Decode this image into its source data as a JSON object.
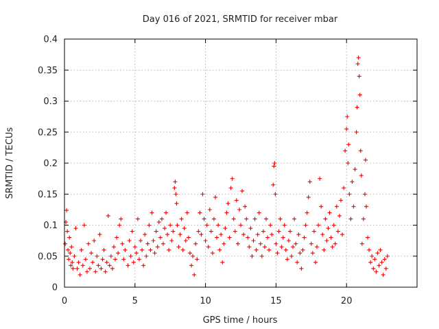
{
  "chart_data": {
    "type": "scatter",
    "title": "Day 016 of 2021, SRMTID for receiver mbar",
    "xlabel": "GPS time / hours",
    "ylabel": "SRMTID / TECUs",
    "xlim": [
      0,
      25
    ],
    "ylim": [
      0,
      0.4
    ],
    "x_ticks": [
      0,
      5,
      10,
      15,
      20
    ],
    "x_tick_labels": [
      "0",
      "5",
      "10",
      "15",
      "20"
    ],
    "y_ticks": [
      0,
      0.05,
      0.1,
      0.15,
      0.2,
      0.25,
      0.3,
      0.35,
      0.4
    ],
    "y_tick_labels": [
      "0",
      "0.05",
      "0.1",
      "0.15",
      "0.2",
      "0.25",
      "0.3",
      "0.35",
      "0.4"
    ],
    "grid": true,
    "marker": "+",
    "color": "#ee0000",
    "series": [
      {
        "name": "SRMTID",
        "points": [
          [
            0.05,
            0.07
          ],
          [
            0.1,
            0.105
          ],
          [
            0.15,
            0.124
          ],
          [
            0.2,
            0.09
          ],
          [
            0.25,
            0.06
          ],
          [
            0.3,
            0.045
          ],
          [
            0.35,
            0.08
          ],
          [
            0.4,
            0.055
          ],
          [
            0.45,
            0.035
          ],
          [
            0.5,
            0.065
          ],
          [
            0.55,
            0.04
          ],
          [
            0.6,
            0.03
          ],
          [
            0.7,
            0.05
          ],
          [
            0.8,
            0.095
          ],
          [
            0.9,
            0.03
          ],
          [
            1.0,
            0.04
          ],
          [
            1.1,
            0.02
          ],
          [
            1.2,
            0.06
          ],
          [
            1.3,
            0.035
          ],
          [
            1.4,
            0.1
          ],
          [
            1.5,
            0.045
          ],
          [
            1.6,
            0.025
          ],
          [
            1.7,
            0.07
          ],
          [
            1.8,
            0.03
          ],
          [
            1.9,
            0.055
          ],
          [
            2.0,
            0.04
          ],
          [
            2.1,
            0.075
          ],
          [
            2.2,
            0.025
          ],
          [
            2.3,
            0.05
          ],
          [
            2.4,
            0.035
          ],
          [
            2.5,
            0.085
          ],
          [
            2.6,
            0.03
          ],
          [
            2.7,
            0.045
          ],
          [
            2.8,
            0.06
          ],
          [
            2.9,
            0.025
          ],
          [
            3.0,
            0.04
          ],
          [
            3.1,
            0.115
          ],
          [
            3.2,
            0.035
          ],
          [
            3.3,
            0.05
          ],
          [
            3.4,
            0.03
          ],
          [
            3.5,
            0.065
          ],
          [
            3.6,
            0.045
          ],
          [
            3.7,
            0.08
          ],
          [
            3.8,
            0.055
          ],
          [
            3.9,
            0.1
          ],
          [
            4.0,
            0.11
          ],
          [
            4.1,
            0.07
          ],
          [
            4.2,
            0.045
          ],
          [
            4.3,
            0.06
          ],
          [
            4.5,
            0.035
          ],
          [
            4.6,
            0.075
          ],
          [
            4.7,
            0.05
          ],
          [
            4.8,
            0.09
          ],
          [
            4.9,
            0.04
          ],
          [
            5.0,
            0.065
          ],
          [
            5.1,
            0.055
          ],
          [
            5.2,
            0.11
          ],
          [
            5.3,
            0.045
          ],
          [
            5.4,
            0.075
          ],
          [
            5.5,
            0.06
          ],
          [
            5.6,
            0.035
          ],
          [
            5.7,
            0.085
          ],
          [
            5.8,
            0.05
          ],
          [
            5.9,
            0.07
          ],
          [
            6.0,
            0.1
          ],
          [
            6.1,
            0.06
          ],
          [
            6.2,
            0.12
          ],
          [
            6.3,
            0.075
          ],
          [
            6.4,
            0.055
          ],
          [
            6.5,
            0.09
          ],
          [
            6.6,
            0.065
          ],
          [
            6.7,
            0.105
          ],
          [
            6.8,
            0.08
          ],
          [
            6.9,
            0.11
          ],
          [
            7.0,
            0.07
          ],
          [
            7.1,
            0.095
          ],
          [
            7.2,
            0.12
          ],
          [
            7.3,
            0.085
          ],
          [
            7.4,
            0.06
          ],
          [
            7.5,
            0.1
          ],
          [
            7.6,
            0.075
          ],
          [
            7.7,
            0.09
          ],
          [
            7.8,
            0.16
          ],
          [
            7.85,
            0.17
          ],
          [
            7.9,
            0.15
          ],
          [
            7.95,
            0.135
          ],
          [
            8.0,
            0.1
          ],
          [
            8.1,
            0.065
          ],
          [
            8.2,
            0.085
          ],
          [
            8.3,
            0.11
          ],
          [
            8.4,
            0.06
          ],
          [
            8.5,
            0.095
          ],
          [
            8.6,
            0.075
          ],
          [
            8.7,
            0.12
          ],
          [
            8.8,
            0.08
          ],
          [
            8.9,
            0.055
          ],
          [
            9.0,
            0.035
          ],
          [
            9.1,
            0.05
          ],
          [
            9.2,
            0.02
          ],
          [
            9.3,
            0.07
          ],
          [
            9.4,
            0.045
          ],
          [
            9.5,
            0.09
          ],
          [
            9.6,
            0.12
          ],
          [
            9.7,
            0.085
          ],
          [
            9.8,
            0.15
          ],
          [
            9.9,
            0.11
          ],
          [
            10.0,
            0.075
          ],
          [
            10.1,
            0.1
          ],
          [
            10.2,
            0.065
          ],
          [
            10.3,
            0.125
          ],
          [
            10.4,
            0.09
          ],
          [
            10.5,
            0.055
          ],
          [
            10.6,
            0.11
          ],
          [
            10.7,
            0.145
          ],
          [
            10.8,
            0.08
          ],
          [
            10.9,
            0.1
          ],
          [
            11.0,
            0.06
          ],
          [
            11.1,
            0.085
          ],
          [
            11.2,
            0.04
          ],
          [
            11.3,
            0.07
          ],
          [
            11.4,
            0.095
          ],
          [
            11.5,
            0.12
          ],
          [
            11.6,
            0.135
          ],
          [
            11.7,
            0.08
          ],
          [
            11.8,
            0.16
          ],
          [
            11.9,
            0.175
          ],
          [
            12.0,
            0.11
          ],
          [
            12.1,
            0.09
          ],
          [
            12.2,
            0.14
          ],
          [
            12.3,
            0.07
          ],
          [
            12.4,
            0.125
          ],
          [
            12.5,
            0.1
          ],
          [
            12.6,
            0.155
          ],
          [
            12.7,
            0.085
          ],
          [
            12.8,
            0.13
          ],
          [
            12.9,
            0.11
          ],
          [
            13.0,
            0.08
          ],
          [
            13.1,
            0.065
          ],
          [
            13.2,
            0.095
          ],
          [
            13.3,
            0.05
          ],
          [
            13.4,
            0.075
          ],
          [
            13.5,
            0.11
          ],
          [
            13.6,
            0.06
          ],
          [
            13.7,
            0.085
          ],
          [
            13.8,
            0.12
          ],
          [
            13.9,
            0.07
          ],
          [
            14.0,
            0.05
          ],
          [
            14.1,
            0.09
          ],
          [
            14.2,
            0.065
          ],
          [
            14.3,
            0.11
          ],
          [
            14.4,
            0.08
          ],
          [
            14.5,
            0.06
          ],
          [
            14.6,
            0.1
          ],
          [
            14.7,
            0.085
          ],
          [
            14.8,
            0.165
          ],
          [
            14.85,
            0.195
          ],
          [
            14.9,
            0.2
          ],
          [
            14.95,
            0.15
          ],
          [
            15.0,
            0.07
          ],
          [
            15.1,
            0.055
          ],
          [
            15.2,
            0.09
          ],
          [
            15.3,
            0.11
          ],
          [
            15.4,
            0.065
          ],
          [
            15.5,
            0.08
          ],
          [
            15.6,
            0.1
          ],
          [
            15.7,
            0.06
          ],
          [
            15.8,
            0.045
          ],
          [
            15.9,
            0.075
          ],
          [
            16.0,
            0.09
          ],
          [
            16.1,
            0.05
          ],
          [
            16.2,
            0.065
          ],
          [
            16.3,
            0.11
          ],
          [
            16.4,
            0.07
          ],
          [
            16.5,
            0.04
          ],
          [
            16.6,
            0.085
          ],
          [
            16.7,
            0.055
          ],
          [
            16.8,
            0.03
          ],
          [
            16.9,
            0.06
          ],
          [
            17.0,
            0.08
          ],
          [
            17.1,
            0.1
          ],
          [
            17.2,
            0.12
          ],
          [
            17.3,
            0.145
          ],
          [
            17.4,
            0.17
          ],
          [
            17.5,
            0.07
          ],
          [
            17.6,
            0.055
          ],
          [
            17.7,
            0.09
          ],
          [
            17.8,
            0.04
          ],
          [
            17.9,
            0.065
          ],
          [
            18.0,
            0.1
          ],
          [
            18.1,
            0.175
          ],
          [
            18.2,
            0.13
          ],
          [
            18.3,
            0.085
          ],
          [
            18.4,
            0.06
          ],
          [
            18.5,
            0.11
          ],
          [
            18.6,
            0.075
          ],
          [
            18.7,
            0.095
          ],
          [
            18.8,
            0.12
          ],
          [
            18.9,
            0.08
          ],
          [
            19.0,
            0.065
          ],
          [
            19.1,
            0.1
          ],
          [
            19.2,
            0.07
          ],
          [
            19.3,
            0.13
          ],
          [
            19.4,
            0.09
          ],
          [
            19.5,
            0.115
          ],
          [
            19.6,
            0.14
          ],
          [
            19.7,
            0.085
          ],
          [
            19.8,
            0.16
          ],
          [
            19.9,
            0.22
          ],
          [
            20.0,
            0.255
          ],
          [
            20.05,
            0.275
          ],
          [
            20.1,
            0.2
          ],
          [
            20.15,
            0.23
          ],
          [
            20.2,
            0.15
          ],
          [
            20.3,
            0.11
          ],
          [
            20.4,
            0.17
          ],
          [
            20.5,
            0.13
          ],
          [
            20.6,
            0.19
          ],
          [
            20.7,
            0.25
          ],
          [
            20.75,
            0.29
          ],
          [
            20.8,
            0.36
          ],
          [
            20.85,
            0.37
          ],
          [
            20.9,
            0.34
          ],
          [
            20.95,
            0.31
          ],
          [
            21.0,
            0.22
          ],
          [
            21.05,
            0.18
          ],
          [
            21.1,
            0.07
          ],
          [
            21.2,
            0.11
          ],
          [
            21.3,
            0.15
          ],
          [
            21.35,
            0.205
          ],
          [
            21.4,
            0.13
          ],
          [
            21.5,
            0.08
          ],
          [
            21.6,
            0.06
          ],
          [
            21.7,
            0.04
          ],
          [
            21.8,
            0.05
          ],
          [
            21.9,
            0.03
          ],
          [
            22.0,
            0.045
          ],
          [
            22.1,
            0.025
          ],
          [
            22.2,
            0.055
          ],
          [
            22.3,
            0.035
          ],
          [
            22.4,
            0.06
          ],
          [
            22.5,
            0.04
          ],
          [
            22.6,
            0.02
          ],
          [
            22.7,
            0.045
          ],
          [
            22.8,
            0.03
          ],
          [
            22.9,
            0.05
          ]
        ]
      }
    ]
  }
}
